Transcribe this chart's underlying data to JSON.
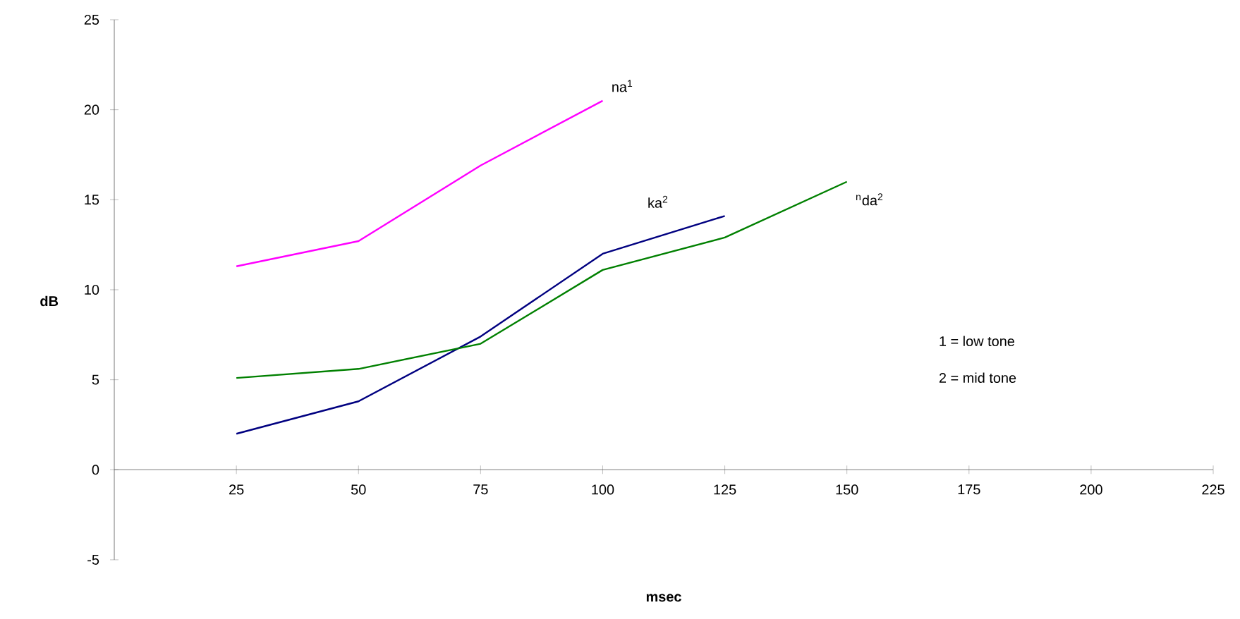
{
  "chart_data": {
    "type": "line",
    "xlabel": "msec",
    "ylabel": "dB",
    "xlim": [
      0,
      225
    ],
    "ylim": [
      -5,
      25
    ],
    "xticks": [
      25,
      50,
      75,
      100,
      125,
      150,
      175,
      200,
      225
    ],
    "yticks": [
      -5,
      0,
      5,
      10,
      15,
      20,
      25
    ],
    "x": [
      25,
      50,
      75,
      100,
      125,
      150
    ],
    "series": [
      {
        "name": "na$^{1}$",
        "color": "#ff00ff",
        "values": [
          11.3,
          12.7,
          16.9,
          20.5,
          null,
          null
        ]
      },
      {
        "name": "ka$^{2}$",
        "color": "#000080",
        "values": [
          2.0,
          3.8,
          7.4,
          12.0,
          14.1,
          null
        ]
      },
      {
        "name": "$^{n}$da$^{2}$",
        "color": "#008000",
        "values": [
          5.1,
          5.6,
          7.0,
          11.1,
          12.9,
          16.0
        ]
      }
    ],
    "annotations": [
      "1 = low tone",
      "2 = mid tone"
    ]
  }
}
